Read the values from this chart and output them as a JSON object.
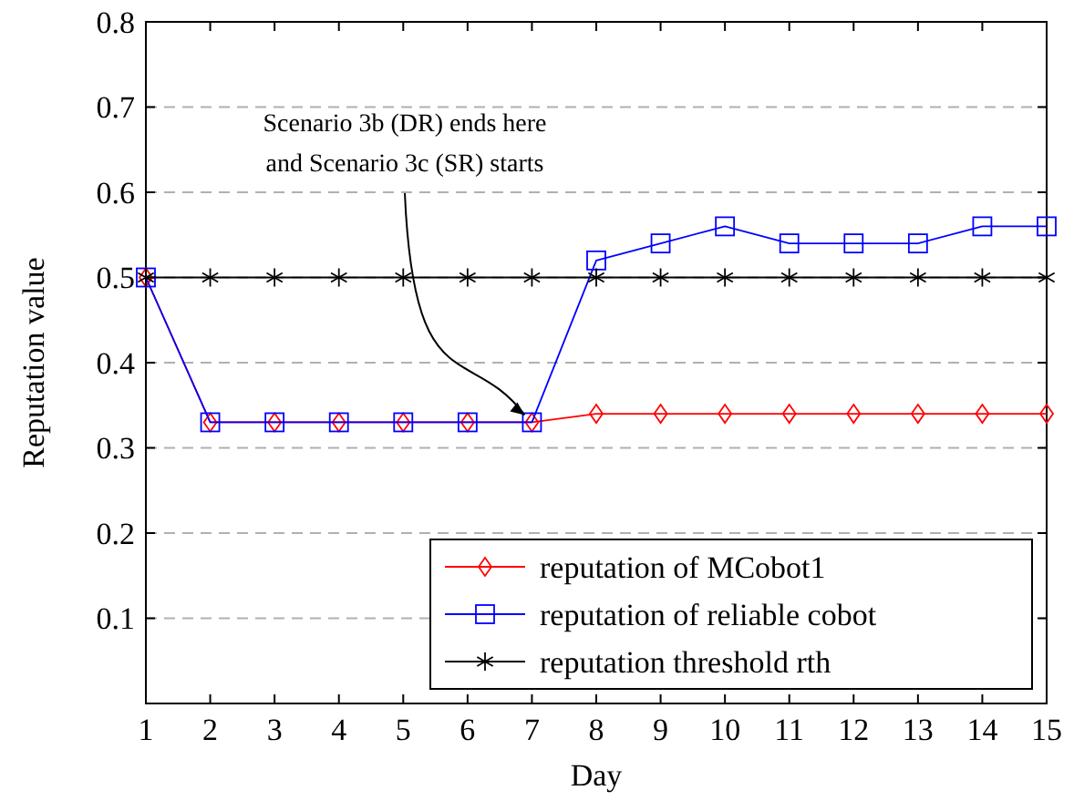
{
  "chart_data": {
    "type": "line",
    "xlabel": "Day",
    "ylabel": "Reputation value",
    "x": [
      1,
      2,
      3,
      4,
      5,
      6,
      7,
      8,
      9,
      10,
      11,
      12,
      13,
      14,
      15
    ],
    "xlim": [
      1,
      15
    ],
    "xticks": [
      1,
      2,
      3,
      4,
      5,
      6,
      7,
      8,
      9,
      10,
      11,
      12,
      13,
      14,
      15
    ],
    "ylim": [
      0,
      0.8
    ],
    "yticks": [
      0.1,
      0.2,
      0.3,
      0.4,
      0.5,
      0.6,
      0.7,
      0.8
    ],
    "grid": "y",
    "legend": "bottom right",
    "line_style": "solid",
    "series": [
      {
        "name": "reputation of MCobot1",
        "color": "#ff0000",
        "marker": "diamond",
        "values": [
          0.5,
          0.33,
          0.33,
          0.33,
          0.33,
          0.33,
          0.33,
          0.34,
          0.34,
          0.34,
          0.34,
          0.34,
          0.34,
          0.34,
          0.34
        ]
      },
      {
        "name": "reputation of reliable cobot",
        "color": "#0000ff",
        "marker": "square",
        "values": [
          0.5,
          0.33,
          0.33,
          0.33,
          0.33,
          0.33,
          0.33,
          0.52,
          0.54,
          0.56,
          0.54,
          0.54,
          0.54,
          0.56,
          0.56
        ]
      },
      {
        "name": "reputation threshold rth",
        "color": "#000000",
        "marker": "cross",
        "values": [
          0.5,
          0.5,
          0.5,
          0.5,
          0.5,
          0.5,
          0.5,
          0.5,
          0.5,
          0.5,
          0.5,
          0.5,
          0.5,
          0.5,
          0.5
        ]
      }
    ],
    "annotations": [
      {
        "text": "Scenario 3b (DR) ends here\nand Scenario 3c (SR) starts",
        "x": 7,
        "y": 0.33
      }
    ]
  }
}
